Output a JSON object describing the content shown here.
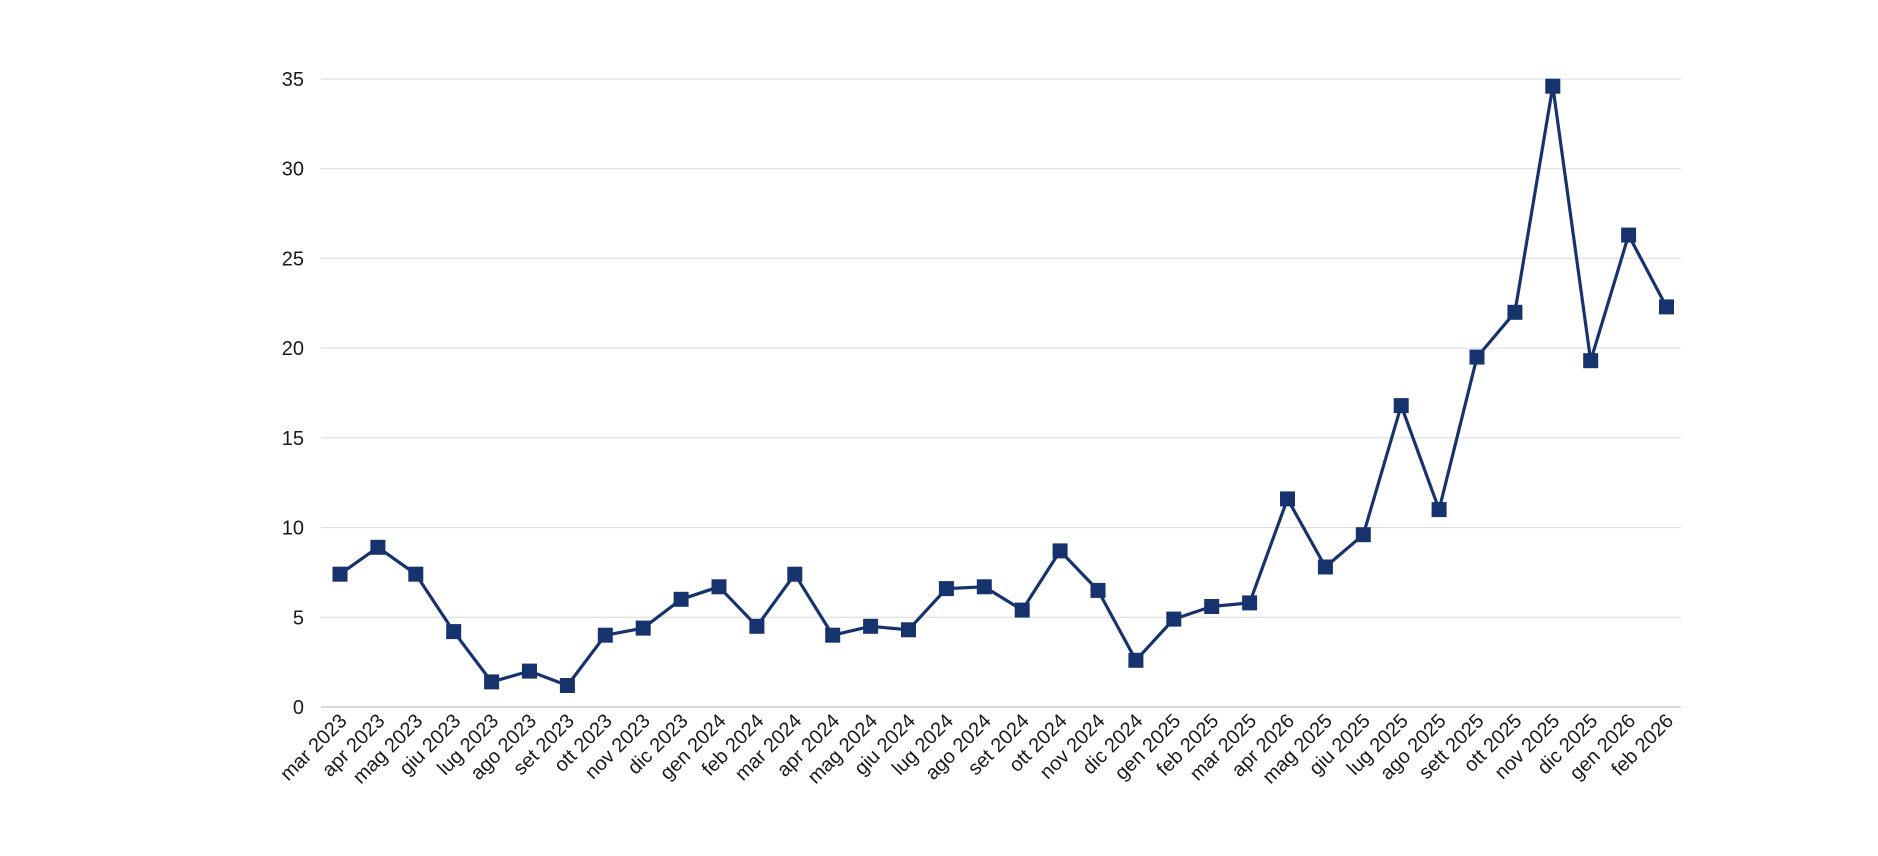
{
  "chart_data": {
    "type": "line",
    "title": "",
    "xlabel": "",
    "ylabel": "",
    "ylim": [
      0,
      35
    ],
    "yticks": [
      0,
      5,
      10,
      15,
      20,
      25,
      30,
      35
    ],
    "grid": true,
    "legend": "none",
    "marker": "square",
    "series_color": "#17336e",
    "categories": [
      "mar 2023",
      "apr 2023",
      "mag 2023",
      "giu 2023",
      "lug 2023",
      "ago 2023",
      "set 2023",
      "ott 2023",
      "nov 2023",
      "dic 2023",
      "gen 2024",
      "feb 2024",
      "mar 2024",
      "apr 2024",
      "mag 2024",
      "giu 2024",
      "lug 2024",
      "ago 2024",
      "set 2024",
      "ott 2024",
      "nov 2024",
      "dic 2024",
      "gen 2025",
      "feb 2025",
      "mar 2025",
      "apr 2026",
      "mag 2025",
      "giu 2025",
      "lug 2025",
      "ago 2025",
      "sett 2025",
      "ott 2025",
      "nov 2025",
      "dic 2025",
      "gen 2026",
      "feb 2026"
    ],
    "series": [
      {
        "values": [
          7.4,
          8.9,
          7.4,
          4.2,
          1.4,
          2.0,
          1.2,
          4.0,
          4.4,
          6.0,
          6.7,
          4.5,
          7.4,
          4.0,
          4.5,
          4.3,
          6.6,
          6.7,
          5.4,
          8.7,
          6.5,
          2.6,
          4.9,
          5.6,
          5.8,
          11.6,
          7.8,
          9.6,
          16.8,
          11.0,
          19.5,
          22.0,
          34.6,
          19.3,
          26.3,
          22.3
        ]
      }
    ]
  }
}
